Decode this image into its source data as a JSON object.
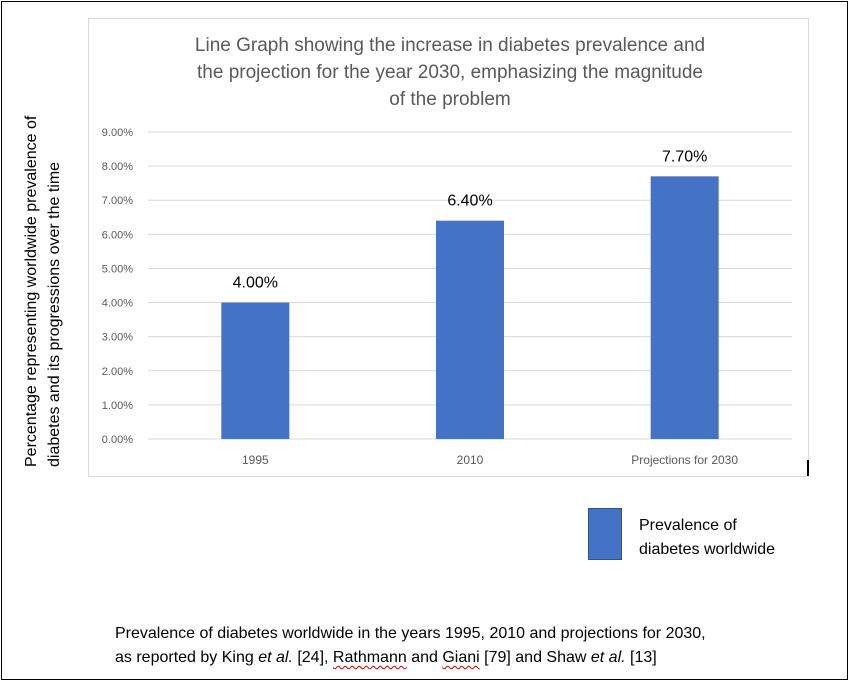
{
  "chart_data": {
    "type": "bar",
    "title": "Line Graph showing the increase in diabetes prevalence and the projection for the year 2030, emphasizing the magnitude of the problem",
    "title_lines": [
      "Line Graph showing the increase in diabetes prevalence and",
      "the projection for the year 2030, emphasizing the magnitude",
      "of the problem"
    ],
    "categories": [
      "1995",
      "2010",
      "Projections for 2030"
    ],
    "series": [
      {
        "name": "Prevalence of diabetes worldwide",
        "values": [
          4.0,
          6.4,
          7.7
        ],
        "data_labels": [
          "4.00%",
          "6.40%",
          "7.70%"
        ],
        "color": "#4472c4"
      }
    ],
    "ylabel": "Percentage representing worldwide prevalence of diabetes and its progressions over the time",
    "ylabel_lines": [
      "Percentage representing worldwide prevalence of",
      "diabetes and its progressions over the time"
    ],
    "xlabel": "",
    "ylim": [
      0,
      9
    ],
    "y_ticks": [
      0,
      1,
      2,
      3,
      4,
      5,
      6,
      7,
      8,
      9
    ],
    "y_tick_labels": [
      "0.00%",
      "1.00%",
      "2.00%",
      "3.00%",
      "4.00%",
      "5.00%",
      "6.00%",
      "7.00%",
      "8.00%",
      "9.00%"
    ],
    "grid": true,
    "legend_position": "bottom-right",
    "legend_lines": [
      "Prevalence of",
      "diabetes worldwide"
    ]
  },
  "caption": {
    "line1": "Prevalence of diabetes worldwide in the years 1995, 2010 and projections for 2030,",
    "line2_parts": [
      {
        "text": "as reported by King ",
        "style": "normal"
      },
      {
        "text": "et al.",
        "style": "italic"
      },
      {
        "text": " [24], ",
        "style": "normal"
      },
      {
        "text": "Rathmann",
        "style": "underline"
      },
      {
        "text": " and ",
        "style": "normal"
      },
      {
        "text": "Giani",
        "style": "underline"
      },
      {
        "text": " [79] and Shaw ",
        "style": "normal"
      },
      {
        "text": "et al.",
        "style": "italic"
      },
      {
        "text": " [13]",
        "style": "normal"
      }
    ]
  },
  "colors": {
    "bar": "#4472c4",
    "grid": "#d9d9d9",
    "axis_text": "#595959"
  }
}
